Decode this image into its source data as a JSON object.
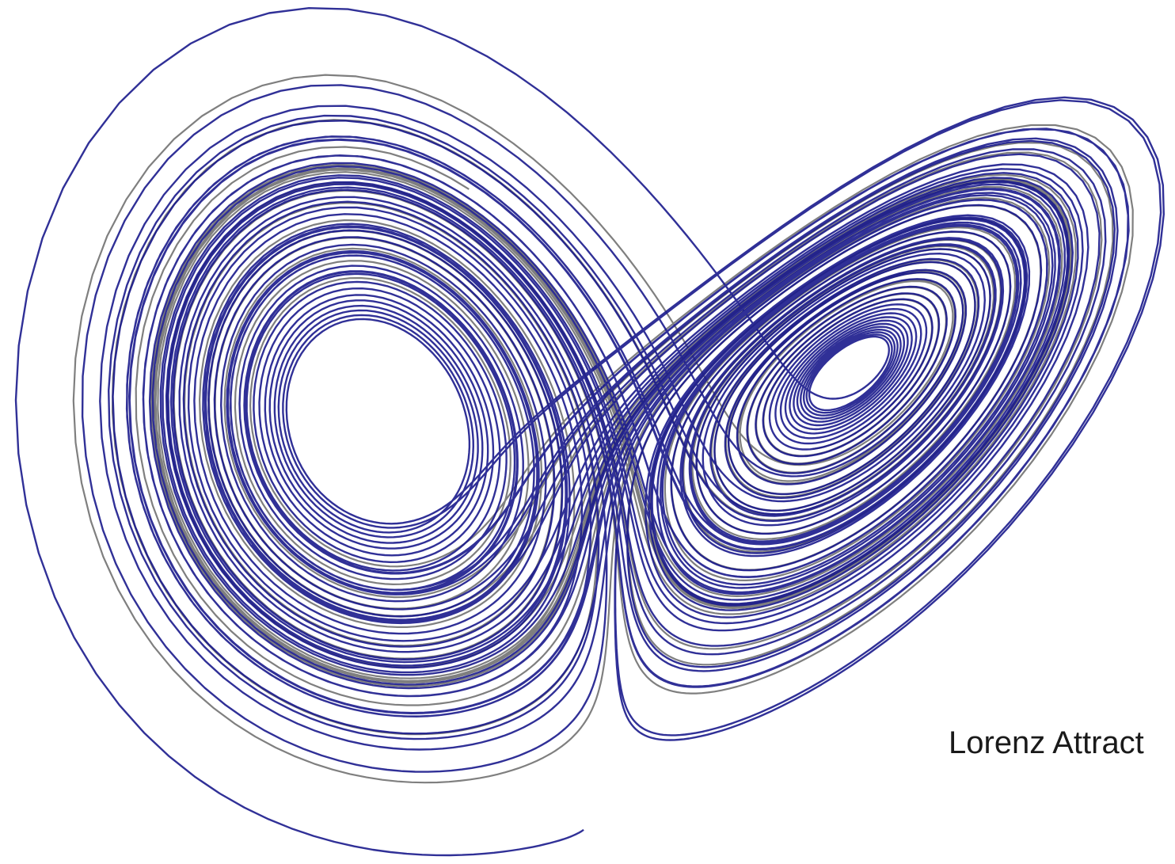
{
  "figure": {
    "caption": "Lorenz Attract",
    "colors": {
      "trajectory_primary": "#1a1a8c",
      "trajectory_secondary": "#7f7f7f",
      "background": "#ffffff"
    }
  }
}
